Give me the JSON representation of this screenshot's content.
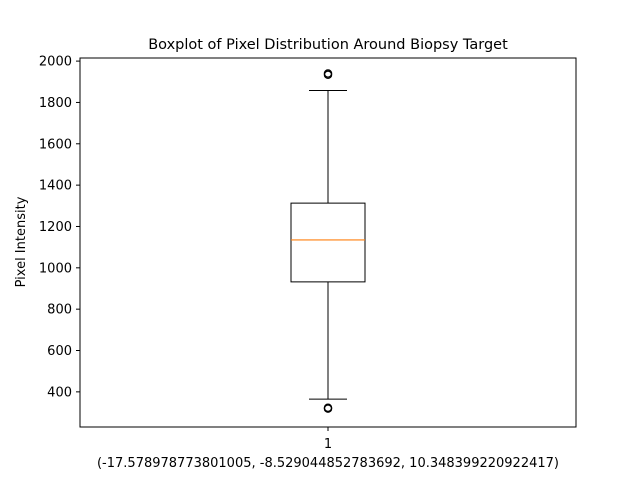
{
  "chart_data": {
    "type": "boxplot",
    "title": "Boxplot of Pixel Distribution Around Biopsy Target",
    "ylabel": "Pixel Intensity",
    "xlabel": "(-17.578978773801005, -8.529044852783692, 10.348399220922417)",
    "ylim": [
      230,
      2015
    ],
    "yticks": [
      400,
      600,
      800,
      1000,
      1200,
      1400,
      1600,
      1800,
      2000
    ],
    "categories": [
      "1"
    ],
    "boxes": [
      {
        "category": "1",
        "whisker_low": 365,
        "q1": 932,
        "median": 1135,
        "q3": 1313,
        "whisker_high": 1858,
        "outliers": [
          319,
          323,
          1934,
          1940
        ]
      }
    ],
    "grid": false,
    "colors": {
      "box": "#000000",
      "median": "#ff7f0e",
      "background": "#ffffff"
    }
  }
}
